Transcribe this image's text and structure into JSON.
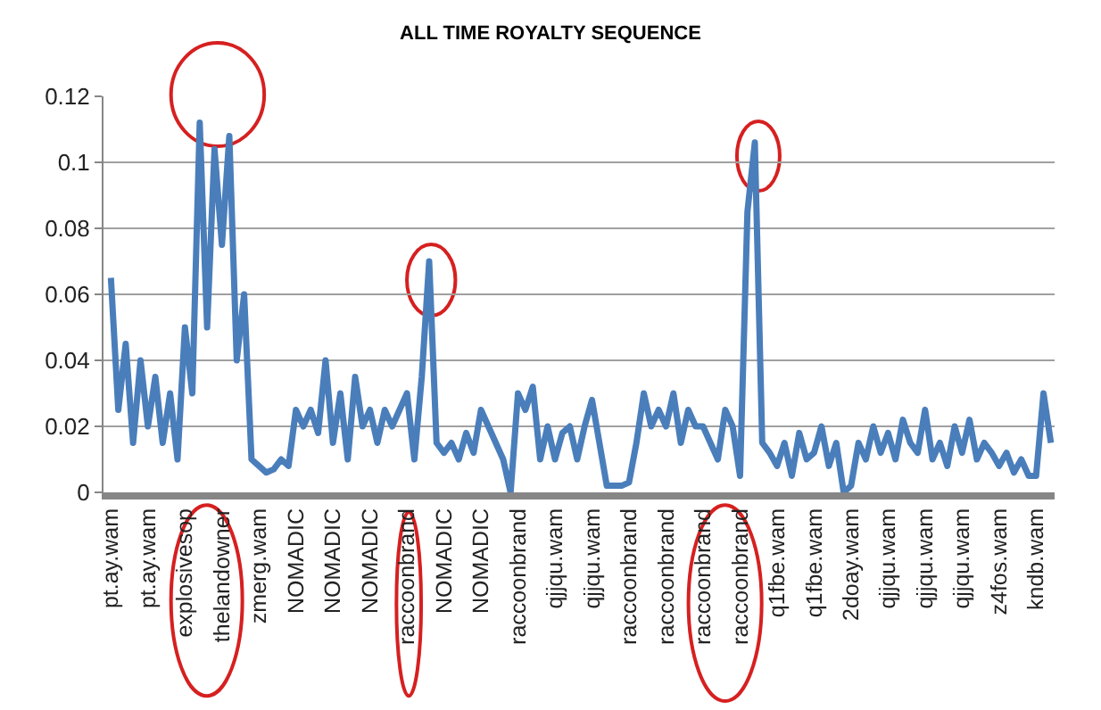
{
  "chart_data": {
    "type": "line",
    "title": "ALL TIME ROYALTY SEQUENCE",
    "categories": [
      "pt.ay.wam",
      null,
      null,
      null,
      null,
      "pt.ay.wam",
      null,
      null,
      null,
      null,
      "explosivesop",
      null,
      null,
      null,
      null,
      "thelandowner",
      null,
      null,
      null,
      null,
      "zmerg.wam",
      null,
      null,
      null,
      null,
      "NOMADIC",
      null,
      null,
      null,
      null,
      "NOMADIC",
      null,
      null,
      null,
      null,
      "NOMADIC",
      null,
      null,
      null,
      null,
      "raccoonbrand",
      null,
      null,
      null,
      null,
      "NOMADIC",
      null,
      null,
      null,
      null,
      "NOMADIC",
      null,
      null,
      null,
      null,
      "raccoonbrand",
      null,
      null,
      null,
      null,
      "qjjqu.wam",
      null,
      null,
      null,
      null,
      "qjjqu.wam",
      null,
      null,
      null,
      null,
      "raccoonbrand",
      null,
      null,
      null,
      null,
      "raccoonbrand",
      null,
      null,
      null,
      null,
      "raccoonbrand",
      null,
      null,
      null,
      null,
      "raccoonbrand",
      null,
      null,
      null,
      null,
      "q1fbe.wam",
      null,
      null,
      null,
      null,
      "q1fbe.wam",
      null,
      null,
      null,
      null,
      "2doay.wam",
      null,
      null,
      null,
      null,
      "qjjqu.wam",
      null,
      null,
      null,
      null,
      "qjjqu.wam",
      null,
      null,
      null,
      null,
      "qjjqu.wam",
      null,
      null,
      null,
      null,
      "z4fos.wam",
      null,
      null,
      null,
      null,
      "kndb.wam",
      null,
      null
    ],
    "series": [
      {
        "color": "#4a7ebb",
        "values": [
          0.065,
          0.025,
          0.045,
          0.015,
          0.04,
          0.02,
          0.035,
          0.015,
          0.03,
          0.01,
          0.05,
          0.03,
          0.112,
          0.05,
          0.104,
          0.075,
          0.108,
          0.04,
          0.06,
          0.01,
          0.008,
          0.006,
          0.007,
          0.01,
          0.008,
          0.025,
          0.02,
          0.025,
          0.018,
          0.04,
          0.015,
          0.03,
          0.01,
          0.035,
          0.02,
          0.025,
          0.015,
          0.025,
          0.02,
          0.025,
          0.03,
          0.01,
          0.035,
          0.07,
          0.015,
          0.012,
          0.015,
          0.01,
          0.018,
          0.012,
          0.025,
          0.02,
          0.015,
          0.01,
          0.0,
          0.03,
          0.025,
          0.032,
          0.01,
          0.02,
          0.01,
          0.018,
          0.02,
          0.01,
          0.02,
          0.028,
          0.015,
          0.002,
          0.002,
          0.002,
          0.003,
          0.015,
          0.03,
          0.02,
          0.025,
          0.02,
          0.03,
          0.015,
          0.025,
          0.02,
          0.02,
          0.015,
          0.01,
          0.025,
          0.02,
          0.005,
          0.085,
          0.106,
          0.015,
          0.012,
          0.008,
          0.015,
          0.005,
          0.018,
          0.01,
          0.012,
          0.02,
          0.008,
          0.015,
          0.0,
          0.002,
          0.015,
          0.01,
          0.02,
          0.012,
          0.018,
          0.01,
          0.022,
          0.015,
          0.012,
          0.025,
          0.01,
          0.015,
          0.008,
          0.02,
          0.012,
          0.022,
          0.01,
          0.015,
          0.012,
          0.008,
          0.012,
          0.006,
          0.01,
          0.005,
          0.005,
          0.03,
          0.015
        ]
      }
    ],
    "ylim": [
      0,
      0.12
    ],
    "yticks": [
      0,
      0.02,
      0.04,
      0.06,
      0.08,
      0.1,
      0.12
    ],
    "grid": "y",
    "marker": "none",
    "line_style": "solid"
  }
}
